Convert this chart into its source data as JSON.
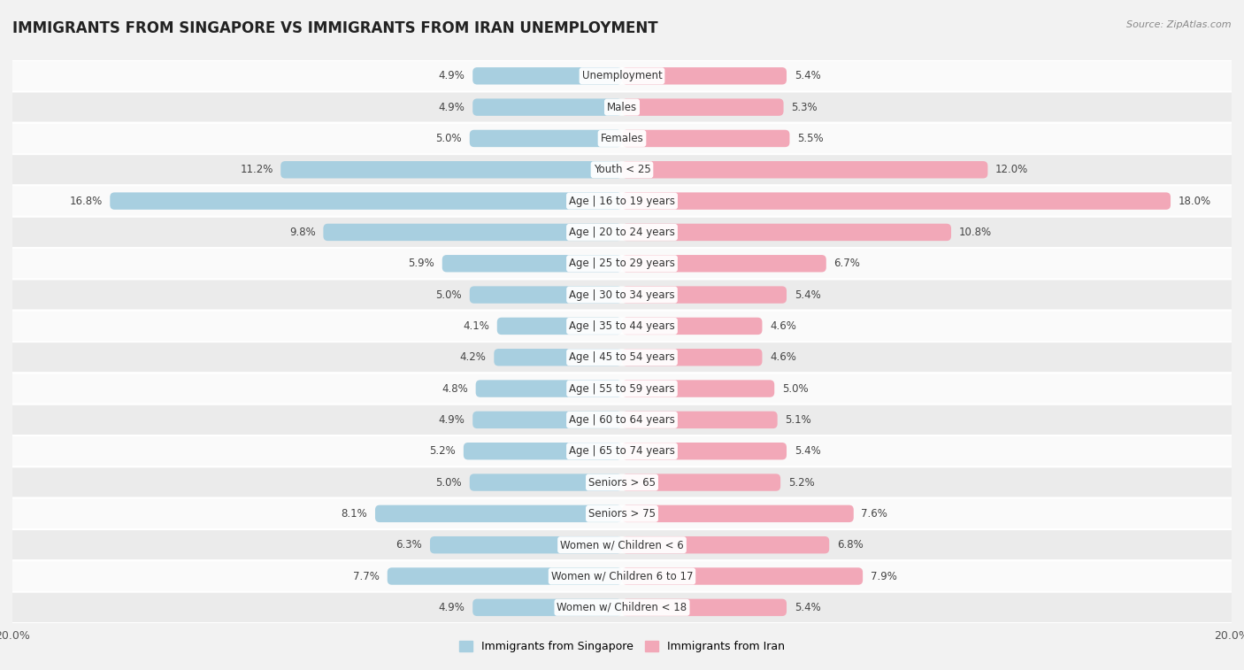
{
  "title": "IMMIGRANTS FROM SINGAPORE VS IMMIGRANTS FROM IRAN UNEMPLOYMENT",
  "source": "Source: ZipAtlas.com",
  "categories": [
    "Unemployment",
    "Males",
    "Females",
    "Youth < 25",
    "Age | 16 to 19 years",
    "Age | 20 to 24 years",
    "Age | 25 to 29 years",
    "Age | 30 to 34 years",
    "Age | 35 to 44 years",
    "Age | 45 to 54 years",
    "Age | 55 to 59 years",
    "Age | 60 to 64 years",
    "Age | 65 to 74 years",
    "Seniors > 65",
    "Seniors > 75",
    "Women w/ Children < 6",
    "Women w/ Children 6 to 17",
    "Women w/ Children < 18"
  ],
  "singapore_values": [
    4.9,
    4.9,
    5.0,
    11.2,
    16.8,
    9.8,
    5.9,
    5.0,
    4.1,
    4.2,
    4.8,
    4.9,
    5.2,
    5.0,
    8.1,
    6.3,
    7.7,
    4.9
  ],
  "iran_values": [
    5.4,
    5.3,
    5.5,
    12.0,
    18.0,
    10.8,
    6.7,
    5.4,
    4.6,
    4.6,
    5.0,
    5.1,
    5.4,
    5.2,
    7.6,
    6.8,
    7.9,
    5.4
  ],
  "singapore_color": "#a8cfe0",
  "iran_color": "#f2a8b8",
  "singapore_label": "Immigrants from Singapore",
  "iran_label": "Immigrants from Iran",
  "background_color": "#f2f2f2",
  "row_color_light": "#fafafa",
  "row_color_dark": "#ebebeb",
  "xlim": 20.0,
  "title_fontsize": 12,
  "label_fontsize": 8.5,
  "value_fontsize": 8.5,
  "tick_fontsize": 9
}
